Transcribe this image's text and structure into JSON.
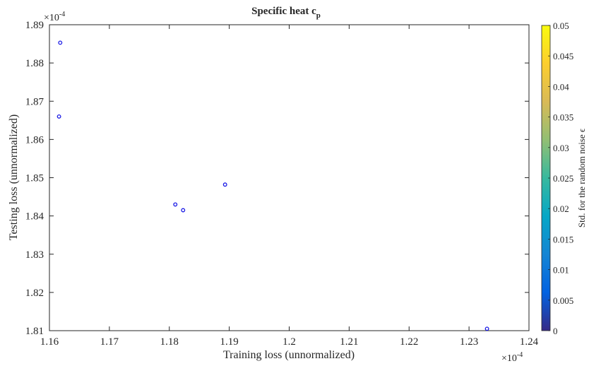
{
  "chart_data": {
    "type": "scatter",
    "title": "Specific heat c",
    "title_subscript": "p",
    "xlabel": "Training loss (unnormalized)",
    "ylabel": "Testing loss (unnormalized)",
    "x_exponent_label": "×10",
    "x_exponent": "-4",
    "y_exponent_label": "×10",
    "y_exponent": "-4",
    "xlim": [
      1.16,
      1.24
    ],
    "ylim": [
      1.81,
      1.89
    ],
    "xticks": [
      1.16,
      1.17,
      1.18,
      1.19,
      1.2,
      1.21,
      1.22,
      1.23,
      1.24
    ],
    "xtick_labels": [
      "1.16",
      "1.17",
      "1.18",
      "1.19",
      "1.2",
      "1.21",
      "1.22",
      "1.23",
      "1.24"
    ],
    "yticks": [
      1.81,
      1.82,
      1.83,
      1.84,
      1.85,
      1.86,
      1.87,
      1.88,
      1.89
    ],
    "ytick_labels": [
      "1.81",
      "1.82",
      "1.83",
      "1.84",
      "1.85",
      "1.86",
      "1.87",
      "1.88",
      "1.89"
    ],
    "grid": false,
    "marker_color": "#1a1ae6",
    "points": [
      {
        "x": 1.1618,
        "y": 1.8853
      },
      {
        "x": 1.1616,
        "y": 1.866
      },
      {
        "x": 1.181,
        "y": 1.843
      },
      {
        "x": 1.1823,
        "y": 1.8415
      },
      {
        "x": 1.1893,
        "y": 1.8482
      },
      {
        "x": 1.233,
        "y": 1.8105
      }
    ],
    "colorbar": {
      "label": "Std. for the random noise ϵ",
      "range": [
        0,
        0.05
      ],
      "ticks": [
        0,
        0.005,
        0.01,
        0.015,
        0.02,
        0.025,
        0.03,
        0.035,
        0.04,
        0.045,
        0.05
      ],
      "tick_labels": [
        "0",
        "0.005",
        "0.01",
        "0.015",
        "0.02",
        "0.025",
        "0.03",
        "0.035",
        "0.04",
        "0.045",
        "0.05"
      ],
      "colormap": "parula",
      "colormap_stops": [
        "#352a87",
        "#0363e1",
        "#1485d4",
        "#06a7c6",
        "#38b99e",
        "#92bf73",
        "#d9ba56",
        "#fcce2e",
        "#f9fb0e"
      ]
    }
  }
}
